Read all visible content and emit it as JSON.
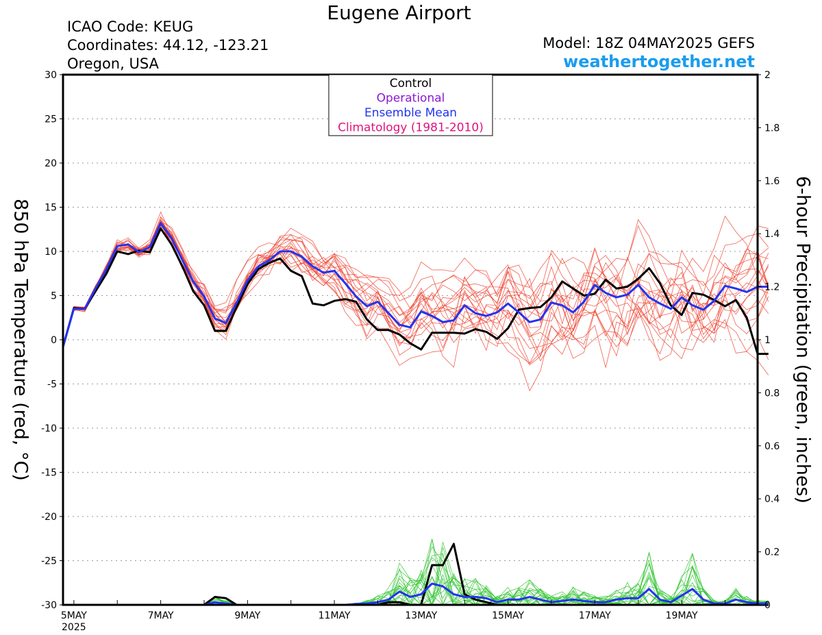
{
  "header": {
    "title": "Eugene Airport",
    "icao": "ICAO Code: KEUG",
    "coordinates": "Coordinates: 44.12, -123.21",
    "location": "Oregon, USA",
    "model": "Model: 18Z 04MAY2025 GEFS",
    "site": "weathertogether.net"
  },
  "colors": {
    "control": "#000000",
    "operational": "#8a19d4",
    "ensemble_mean": "#2433f0",
    "climatology": "#e0137d",
    "members_temp": "#ee4433",
    "members_precip": "#33c433",
    "site": "#1a9cf0"
  },
  "legend": {
    "control": "Control",
    "operational": "Operational",
    "ensemble_mean": "Ensemble Mean",
    "climatology": "Climatology (1981-2010)"
  },
  "chart_data": {
    "type": "line",
    "title": "Eugene Airport",
    "ylabel_left": "850 hPa Temperature (red, °C)",
    "ylabel_right": "6-hour Precipitation (green, inches)",
    "ylim_left": [
      -30,
      30
    ],
    "ylim_right": [
      0,
      2
    ],
    "yticks_left": [
      "30",
      "25",
      "20",
      "15",
      "10",
      "5",
      "0",
      "-5",
      "-10",
      "-15",
      "-20",
      "-25",
      "-30"
    ],
    "yticks_right": [
      "2",
      "1.8",
      "1.6",
      "1.4",
      "1.2",
      "1",
      "0.8",
      "0.6",
      "0.4",
      "0.2",
      "0"
    ],
    "xticks": [
      "5MAY",
      "7MAY",
      "9MAY",
      "11MAY",
      "13MAY",
      "15MAY",
      "17MAY",
      "19MAY"
    ],
    "xtick_year": "2025",
    "x_start_day": 4.75,
    "x_end_day": 20.75,
    "step_hours": 6,
    "grid": "dotted horizontal",
    "series": [
      {
        "name": "Control",
        "axis": "temperature",
        "values": [
          -0.8,
          3.6,
          3.5,
          5.5,
          7.5,
          10.0,
          9.7,
          10.1,
          9.9,
          12.6,
          10.8,
          8.3,
          5.5,
          3.9,
          1.0,
          1.0,
          3.7,
          6.3,
          8.0,
          8.7,
          9.2,
          7.8,
          7.2,
          4.1,
          3.9,
          4.4,
          4.6,
          4.3,
          2.3,
          1.1,
          1.1,
          0.6,
          -0.4,
          -1.1,
          0.8,
          0.8,
          0.8,
          0.7,
          1.2,
          0.9,
          0.1,
          1.3,
          3.4,
          3.6,
          3.7,
          4.8,
          6.6,
          5.8,
          5.0,
          5.2,
          6.8,
          5.8,
          6.0,
          6.9,
          8.1,
          6.4,
          3.9,
          2.8,
          5.3,
          5.1,
          4.5,
          3.8,
          4.5,
          2.5,
          -1.6,
          -1.6
        ]
      },
      {
        "name": "Ensemble Mean",
        "axis": "temperature",
        "values": [
          -0.8,
          3.5,
          3.5,
          5.8,
          8.0,
          10.6,
          10.8,
          9.9,
          10.5,
          13.2,
          11.5,
          9.0,
          6.6,
          4.9,
          2.4,
          1.9,
          4.2,
          6.7,
          8.3,
          9.0,
          10.0,
          10.0,
          9.4,
          8.3,
          7.6,
          7.8,
          6.4,
          4.9,
          3.8,
          4.3,
          3.0,
          1.7,
          1.4,
          3.2,
          2.7,
          2.0,
          2.2,
          3.9,
          3.0,
          2.7,
          3.1,
          4.1,
          3.1,
          2.0,
          2.3,
          4.2,
          3.9,
          3.1,
          4.3,
          6.2,
          5.3,
          4.8,
          5.1,
          6.2,
          4.8,
          4.1,
          3.5,
          4.8,
          3.9,
          3.4,
          4.4,
          6.1,
          5.8,
          5.4,
          6.0,
          6.0
        ]
      },
      {
        "name": "Control",
        "axis": "precipitation",
        "values": [
          0,
          0,
          0,
          0,
          0,
          0,
          0,
          0,
          0,
          0,
          0,
          0,
          0,
          0,
          0.03,
          0.025,
          0,
          0,
          0,
          0,
          0,
          0,
          0,
          0,
          0,
          0,
          0,
          0,
          0,
          0,
          0.01,
          0.01,
          0,
          0,
          0.15,
          0.15,
          0.23,
          0.04,
          0.02,
          0.01,
          0,
          0,
          0,
          0,
          0,
          0,
          0,
          0,
          0,
          0,
          0,
          0,
          0,
          0,
          0,
          0,
          0,
          0,
          0,
          0,
          0,
          0,
          0,
          0,
          0,
          0
        ]
      },
      {
        "name": "Ensemble Mean",
        "axis": "precipitation",
        "values": [
          0,
          0,
          0,
          0,
          0,
          0,
          0,
          0,
          0,
          0,
          0,
          0,
          0,
          0,
          0.01,
          0.005,
          0,
          0,
          0,
          0,
          0,
          0,
          0,
          0,
          0,
          0,
          0,
          0.003,
          0.005,
          0.01,
          0.02,
          0.05,
          0.03,
          0.04,
          0.08,
          0.07,
          0.04,
          0.03,
          0.03,
          0.025,
          0.01,
          0.02,
          0.02,
          0.03,
          0.02,
          0.01,
          0.015,
          0.02,
          0.015,
          0.01,
          0.01,
          0.02,
          0.025,
          0.025,
          0.06,
          0.02,
          0.01,
          0.035,
          0.06,
          0.02,
          0.005,
          0.005,
          0.02,
          0.01,
          0.005,
          0.005
        ]
      }
    ]
  }
}
